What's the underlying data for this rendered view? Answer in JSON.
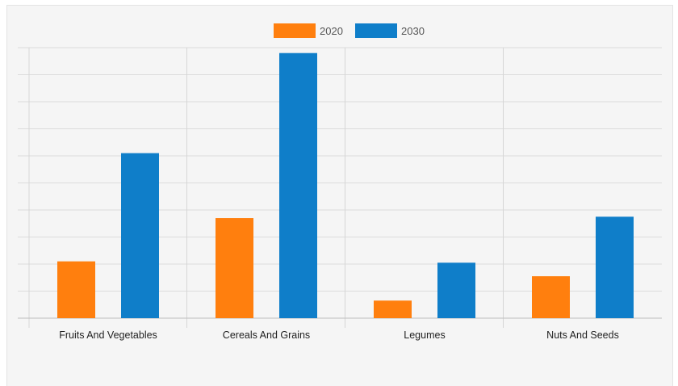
{
  "chart_data": {
    "type": "bar",
    "categories": [
      "Fruits And Vegetables",
      "Cereals And Grains",
      "Legumes",
      "Nuts And Seeds"
    ],
    "series": [
      {
        "name": "2020",
        "color": "#ff7f0e",
        "values": [
          2.1,
          3.7,
          0.65,
          1.55
        ]
      },
      {
        "name": "2030",
        "color": "#0f7ec9",
        "values": [
          6.1,
          9.8,
          2.05,
          3.75
        ]
      }
    ],
    "ylim": [
      0,
      10
    ],
    "y_gridlines": 10,
    "grid": true,
    "legend_position": "top-center",
    "title": "",
    "xlabel": "",
    "ylabel": ""
  }
}
